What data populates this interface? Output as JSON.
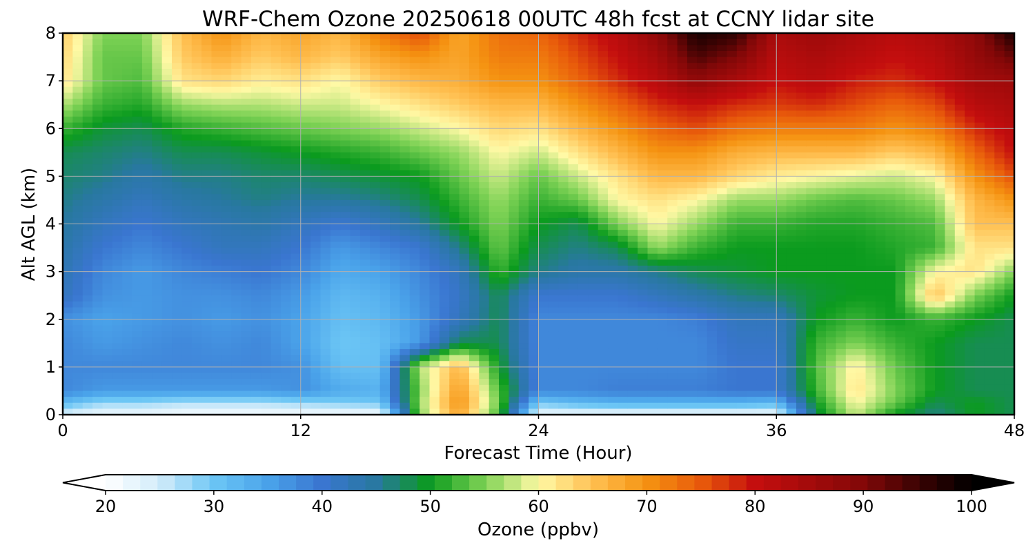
{
  "chart_data": {
    "type": "heatmap",
    "title": "WRF-Chem Ozone  20250618 00UTC 48h fcst at CCNY lidar site",
    "xlabel": "Forecast Time (Hour)",
    "ylabel": "Alt AGL (km)",
    "xlim": [
      0,
      48
    ],
    "ylim": [
      0,
      8
    ],
    "xticks": [
      "0",
      "12",
      "24",
      "36",
      "48"
    ],
    "yticks": [
      "0",
      "1",
      "2",
      "3",
      "4",
      "5",
      "6",
      "7",
      "8"
    ],
    "grid": true,
    "colorbar": {
      "label": "Ozone  (ppbv)",
      "range": [
        20,
        100
      ],
      "ticks": [
        "20",
        "30",
        "40",
        "50",
        "60",
        "70",
        "80",
        "90",
        "100"
      ],
      "extend": "both",
      "stops": [
        [
          20,
          "#ffffff"
        ],
        [
          25,
          "#d2ecfa"
        ],
        [
          30,
          "#6cc6f5"
        ],
        [
          35,
          "#4aa3ea"
        ],
        [
          40,
          "#3a76d0"
        ],
        [
          45,
          "#2878a0"
        ],
        [
          50,
          "#0b9b1e"
        ],
        [
          55,
          "#7ed255"
        ],
        [
          60,
          "#fff9a5"
        ],
        [
          65,
          "#ffc052"
        ],
        [
          70,
          "#f59311"
        ],
        [
          75,
          "#e85a0b"
        ],
        [
          80,
          "#c40e0e"
        ],
        [
          85,
          "#a40b0b"
        ],
        [
          90,
          "#820808"
        ],
        [
          95,
          "#3c0303"
        ],
        [
          100,
          "#000000"
        ]
      ]
    },
    "hours": [
      0,
      2,
      4,
      6,
      8,
      10,
      12,
      14,
      16,
      18,
      20,
      22,
      24,
      26,
      28,
      30,
      32,
      34,
      36,
      38,
      40,
      42,
      44,
      46,
      48
    ],
    "altitudes_km": [
      0,
      0.25,
      0.5,
      1,
      1.5,
      2,
      2.5,
      3,
      3.5,
      4,
      4.5,
      5,
      5.5,
      6,
      6.5,
      7,
      7.5,
      8
    ],
    "values": [
      [
        24,
        22,
        22,
        21,
        21,
        21,
        21,
        21,
        21,
        55,
        68,
        52,
        22,
        22,
        22,
        22,
        22,
        22,
        22,
        48,
        58,
        50,
        46,
        50,
        48
      ],
      [
        32,
        28,
        28,
        27,
        27,
        27,
        28,
        29,
        30,
        56,
        70,
        54,
        30,
        32,
        33,
        33,
        33,
        33,
        32,
        50,
        60,
        54,
        48,
        50,
        48
      ],
      [
        38,
        36,
        36,
        36,
        36,
        36,
        37,
        34,
        33,
        55,
        69,
        53,
        38,
        38,
        39,
        39,
        39,
        40,
        40,
        52,
        62,
        55,
        50,
        48,
        48
      ],
      [
        38,
        38,
        38,
        38,
        38,
        38,
        37,
        31,
        31,
        57,
        66,
        50,
        38,
        38,
        38,
        38,
        38,
        40,
        40,
        53,
        61,
        54,
        50,
        48,
        48
      ],
      [
        38,
        36,
        37,
        38,
        37,
        38,
        35,
        30,
        31,
        36,
        48,
        48,
        38,
        38,
        38,
        38,
        38,
        41,
        41,
        52,
        55,
        52,
        50,
        48,
        48
      ],
      [
        37,
        35,
        36,
        37,
        36,
        37,
        35,
        31,
        32,
        36,
        42,
        48,
        38,
        38,
        38,
        38,
        39,
        42,
        42,
        50,
        52,
        50,
        52,
        50,
        48
      ],
      [
        42,
        37,
        36,
        37,
        37,
        38,
        36,
        32,
        33,
        37,
        41,
        48,
        40,
        40,
        40,
        42,
        44,
        46,
        47,
        49,
        50,
        50,
        65,
        55,
        50
      ],
      [
        43,
        38,
        36,
        38,
        39,
        40,
        38,
        34,
        35,
        38,
        42,
        52,
        46,
        44,
        44,
        46,
        48,
        49,
        50,
        50,
        50,
        50,
        60,
        62,
        55
      ],
      [
        44,
        40,
        38,
        40,
        42,
        42,
        40,
        36,
        38,
        40,
        46,
        54,
        48,
        46,
        48,
        56,
        52,
        50,
        50,
        50,
        50,
        51,
        52,
        62,
        62
      ],
      [
        45,
        42,
        40,
        42,
        43,
        44,
        42,
        40,
        42,
        45,
        50,
        55,
        50,
        48,
        55,
        60,
        56,
        52,
        52,
        51,
        51,
        52,
        53,
        65,
        65
      ],
      [
        46,
        44,
        42,
        44,
        45,
        46,
        45,
        45,
        46,
        48,
        52,
        56,
        52,
        54,
        60,
        62,
        60,
        56,
        56,
        54,
        53,
        54,
        56,
        66,
        70
      ],
      [
        47,
        46,
        44,
        46,
        46,
        47,
        47,
        48,
        49,
        50,
        54,
        58,
        54,
        58,
        62,
        66,
        66,
        63,
        61,
        60,
        59,
        58,
        60,
        70,
        76
      ],
      [
        48,
        47,
        46,
        48,
        48,
        49,
        50,
        51,
        52,
        54,
        56,
        60,
        58,
        62,
        66,
        70,
        70,
        67,
        66,
        66,
        66,
        64,
        66,
        74,
        80
      ],
      [
        52,
        49,
        48,
        51,
        52,
        53,
        54,
        55,
        56,
        58,
        60,
        63,
        62,
        66,
        70,
        74,
        76,
        73,
        72,
        72,
        72,
        70,
        72,
        78,
        82
      ],
      [
        57,
        52,
        51,
        56,
        57,
        57,
        58,
        58,
        60,
        62,
        64,
        66,
        66,
        70,
        74,
        78,
        80,
        78,
        77,
        78,
        76,
        74,
        76,
        82,
        84
      ],
      [
        62,
        54,
        53,
        62,
        63,
        61,
        62,
        60,
        64,
        66,
        67,
        70,
        70,
        74,
        78,
        82,
        88,
        84,
        80,
        82,
        79,
        78,
        80,
        85,
        86
      ],
      [
        63,
        54,
        54,
        64,
        67,
        64,
        66,
        64,
        68,
        70,
        68,
        72,
        72,
        76,
        80,
        85,
        94,
        90,
        82,
        84,
        82,
        80,
        82,
        87,
        92
      ],
      [
        64,
        55,
        55,
        65,
        70,
        66,
        68,
        66,
        72,
        76,
        68,
        73,
        74,
        78,
        82,
        88,
        98,
        96,
        84,
        86,
        84,
        82,
        84,
        88,
        98
      ]
    ]
  }
}
